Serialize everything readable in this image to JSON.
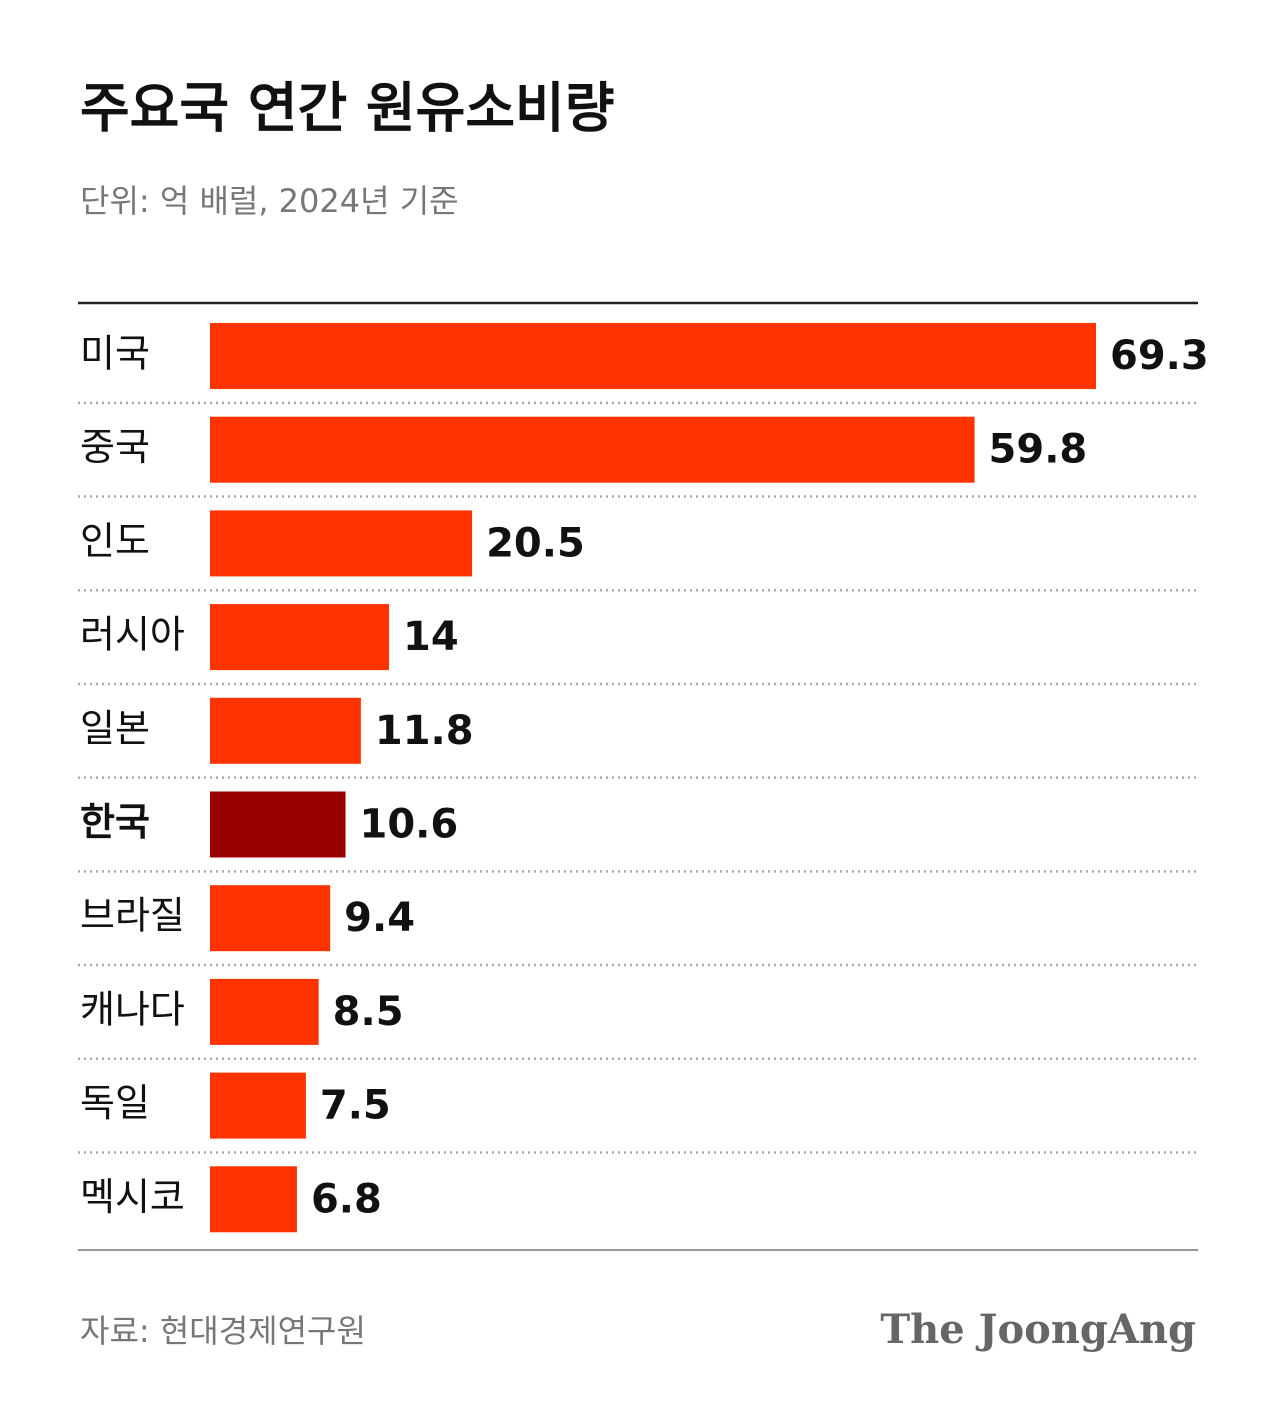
{
  "chart_data": {
    "type": "bar",
    "orientation": "horizontal",
    "title": "주요국 연간 원유소비량",
    "subtitle": "단위: 억 배럴, 2024년 기준",
    "source": "자료: 현대경제연구원",
    "brand": "The JoongAng",
    "categories": [
      "미국",
      "중국",
      "인도",
      "러시아",
      "일본",
      "한국",
      "브라질",
      "캐나다",
      "독일",
      "멕시코"
    ],
    "values": [
      69.3,
      59.8,
      20.5,
      14,
      11.8,
      10.6,
      9.4,
      8.5,
      7.5,
      6.8
    ],
    "colors": [
      "#ff3300",
      "#ff3300",
      "#ff3300",
      "#ff3300",
      "#ff3300",
      "#990000",
      "#ff3300",
      "#ff3300",
      "#ff3300",
      "#ff3300"
    ]
  }
}
